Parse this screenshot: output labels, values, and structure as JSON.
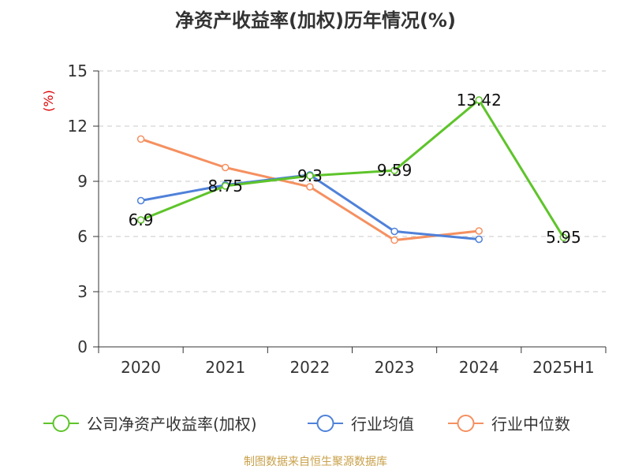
{
  "chart_data": {
    "type": "line",
    "title": "净资产收益率(加权)历年情况(%)",
    "ylabel": "(%)",
    "categories": [
      "2020",
      "2021",
      "2022",
      "2023",
      "2024",
      "2025H1"
    ],
    "ylim": [
      0,
      15
    ],
    "yticks": [
      0,
      3,
      6,
      9,
      12,
      15
    ],
    "grid": true,
    "legend_position": "bottom",
    "series": [
      {
        "name": "公司净资产收益率(加权)",
        "color": "#5ec42a",
        "values": [
          6.9,
          8.75,
          9.3,
          9.59,
          13.42,
          5.95
        ],
        "data_labels": true
      },
      {
        "name": "行业均值",
        "color": "#4f81d9",
        "values": [
          7.95,
          8.8,
          9.35,
          6.28,
          5.85,
          null
        ],
        "data_labels": false
      },
      {
        "name": "行业中位数",
        "color": "#f59060",
        "values": [
          11.3,
          9.75,
          8.7,
          5.8,
          6.3,
          null
        ],
        "data_labels": false
      }
    ],
    "data_labels": [
      "6.9",
      "8.75",
      "9.3",
      "9.59",
      "13.42",
      "5.95"
    ],
    "source": "制图数据来自恒生聚源数据库",
    "source_color": "#c8a04a",
    "ylabel_color": "#dd0000"
  }
}
